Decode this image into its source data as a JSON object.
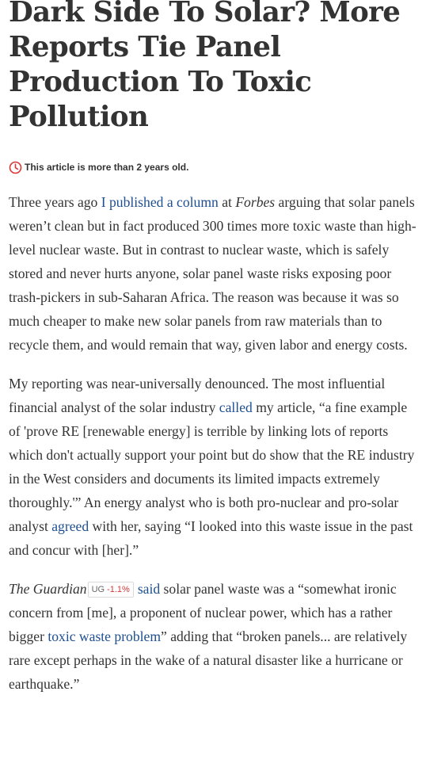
{
  "headline": {
    "line1": "Dark Side To Solar? More",
    "line2": "Reports Tie Panel",
    "line3": "Production To Toxic",
    "line4": "Pollution"
  },
  "age_notice": {
    "icon": "clock-icon",
    "text": "This article is more than 2 years old."
  },
  "p1": {
    "t1": "Three years ago ",
    "link1": "I published a column",
    "t2": " at ",
    "pub": "Forbes",
    "t3": " arguing that solar panels weren’t clean but in fact produced 300 times more toxic waste than high-level nuclear waste. But in contrast to nuclear waste, which is safely stored and never hurts anyone, solar panel waste risks exposing poor trash-pickers in sub-Saharan Africa. The reason was because it was so much cheaper to make new solar panels from raw materials than to recycle them, and would remain that way, given labor and energy costs."
  },
  "p2": {
    "t1": "My reporting was near-universally denounced. The most influential financial analyst of the solar industry ",
    "link1": "called",
    "t2": " my article, “a fine example of 'prove RE [renewable energy] is terrible by linking lots of reports which don't actually support your point but do show that the RE industry in the West considers and documents its limited impacts extremely thoroughly.'” An energy analyst who is both pro-nuclear and pro-solar analyst ",
    "link2": "agreed",
    "t3": " with her, saying “I looked into this waste issue in the past and concur with [her].”"
  },
  "p3": {
    "pub": "The Guardian",
    "ticker_symbol": "UG",
    "ticker_change": "-1.1%",
    "t_sp": " ",
    "link1": "said",
    "t1": " solar panel waste was a “somewhat ironic concern from [me], a proponent of nuclear power, which has a rather bigger ",
    "link2": "toxic waste problem",
    "t2": "” adding that “broken panels... are relatively rare except perhaps in the wake of a natural disaster like a hurricane or earthquake.”"
  },
  "colors": {
    "text": "#333333",
    "link": "#1d4f91",
    "clock": "#d93636",
    "ticker_negative": "#d93636"
  }
}
